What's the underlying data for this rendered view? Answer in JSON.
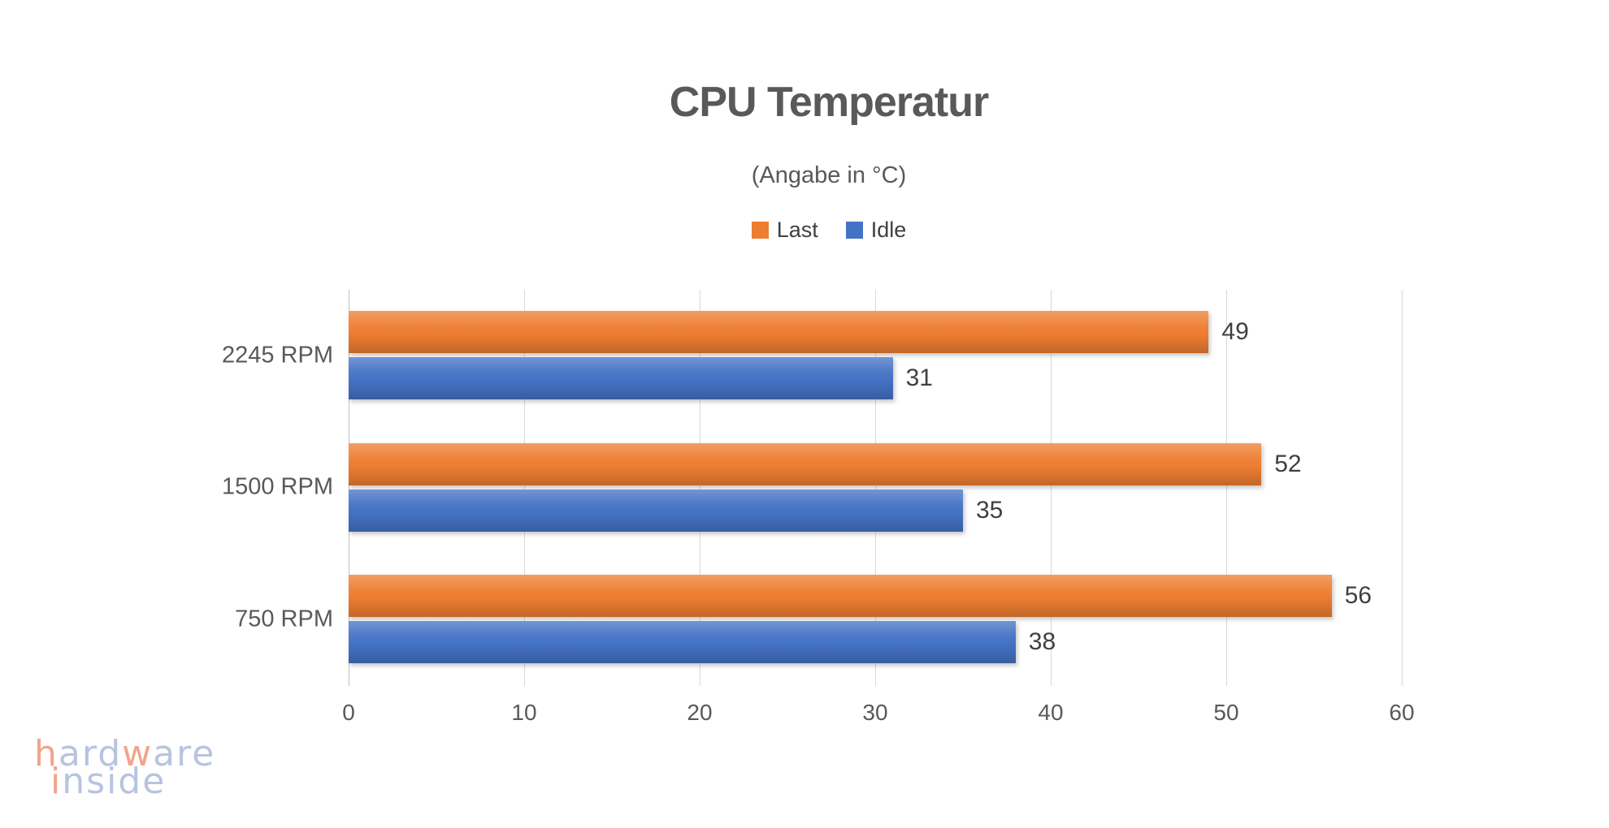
{
  "chart_data": {
    "type": "bar",
    "orientation": "horizontal",
    "title": "CPU Temperatur",
    "subtitle": "(Angabe in °C)",
    "categories": [
      "2245 RPM",
      "1500 RPM",
      "750 RPM"
    ],
    "series": [
      {
        "name": "Last",
        "color": "#ED7D31",
        "values": [
          49,
          52,
          56
        ]
      },
      {
        "name": "Idle",
        "color": "#4472C4",
        "values": [
          31,
          35,
          38
        ]
      }
    ],
    "xlim": [
      0,
      60
    ],
    "x_ticks": [
      0,
      10,
      20,
      30,
      40,
      50,
      60
    ],
    "grid": "vertical",
    "legend_position": "top",
    "data_labels": true
  },
  "colors": {
    "background": "#FFFFFF",
    "title_text": "#595959",
    "subtitle_text": "#595959",
    "legend_text": "#404040",
    "axis_text": "#595959",
    "data_label_text": "#404040",
    "gridline": "#D9D9D9",
    "axis_line": "#BFBFBF",
    "series_last": "#ED7D31",
    "series_idle": "#4472C4"
  },
  "watermark": {
    "line1": "hardware",
    "line2": "inside",
    "line1_accent_indexes": [
      0,
      4
    ],
    "line2_accent_indexes": [
      0
    ],
    "accent_color": "#F2A48C",
    "base_color": "#B7C4E0"
  }
}
